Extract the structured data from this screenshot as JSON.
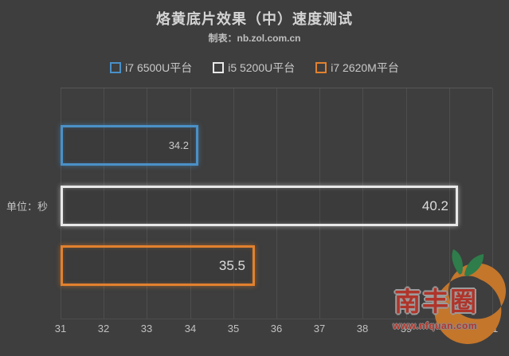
{
  "header": {
    "title": "烙黄底片效果（中）速度测试",
    "subtitle": "制表：nb.zol.com.cn"
  },
  "legend": {
    "items": [
      {
        "label": "i7 6500U平台",
        "color": "#4a90c8"
      },
      {
        "label": "i5 5200U平台",
        "color": "#e8e8e8"
      },
      {
        "label": "i7 2620M平台",
        "color": "#e2812e"
      }
    ]
  },
  "chart_data": {
    "type": "bar",
    "orientation": "horizontal",
    "title": "烙黄底片效果（中）速度测试",
    "subtitle": "制表：nb.zol.com.cn",
    "unit_label": "单位：秒",
    "categories": [
      "i7 6500U平台",
      "i5 5200U平台",
      "i7 2620M平台"
    ],
    "values": [
      34.2,
      40.2,
      35.5
    ],
    "colors": [
      "#4a90c8",
      "#e8e8e8",
      "#e2812e"
    ],
    "value_label_colors": [
      "#c9c9c9",
      "#dcdcdc",
      "#dcdcdc"
    ],
    "xlim": [
      31,
      41
    ],
    "xticks": [
      31,
      32,
      33,
      34,
      35,
      36,
      37,
      38,
      39,
      40,
      41
    ],
    "grid": true,
    "legend_position": "top",
    "lower_is_better": true
  },
  "watermark": {
    "name": "南丰圈",
    "url": "www.nfquan.com",
    "text_color": "#b0342a",
    "circle_color": "#c4762b",
    "leaf_color": "#2e7d4b"
  }
}
